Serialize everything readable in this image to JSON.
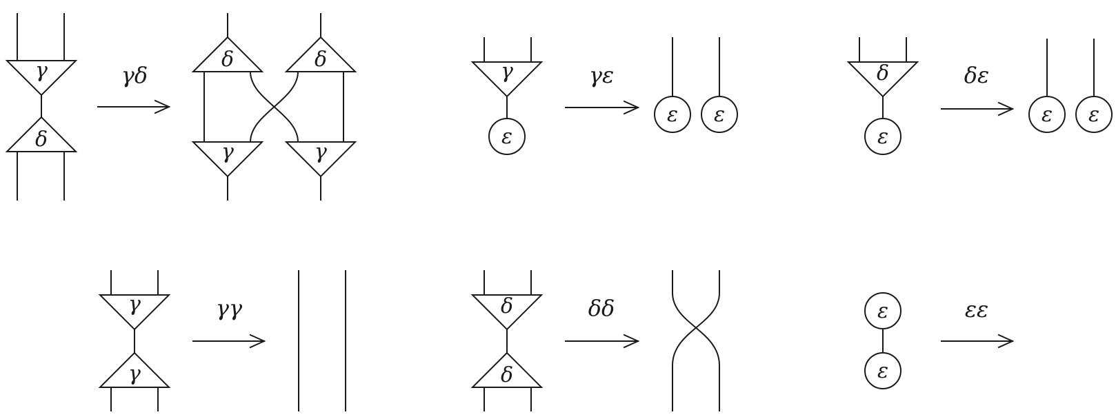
{
  "symbols": {
    "gamma": "γ",
    "delta": "δ",
    "epsilon": "ε"
  },
  "rules": [
    {
      "id": "gd",
      "label": "γδ"
    },
    {
      "id": "ge",
      "label": "γε"
    },
    {
      "id": "de",
      "label": "δε"
    },
    {
      "id": "gg",
      "label": "γγ"
    },
    {
      "id": "dd",
      "label": "δδ"
    },
    {
      "id": "ee",
      "label": "εε"
    }
  ],
  "colors": {
    "ink": "#1a1a1a",
    "background": "#ffffff"
  }
}
